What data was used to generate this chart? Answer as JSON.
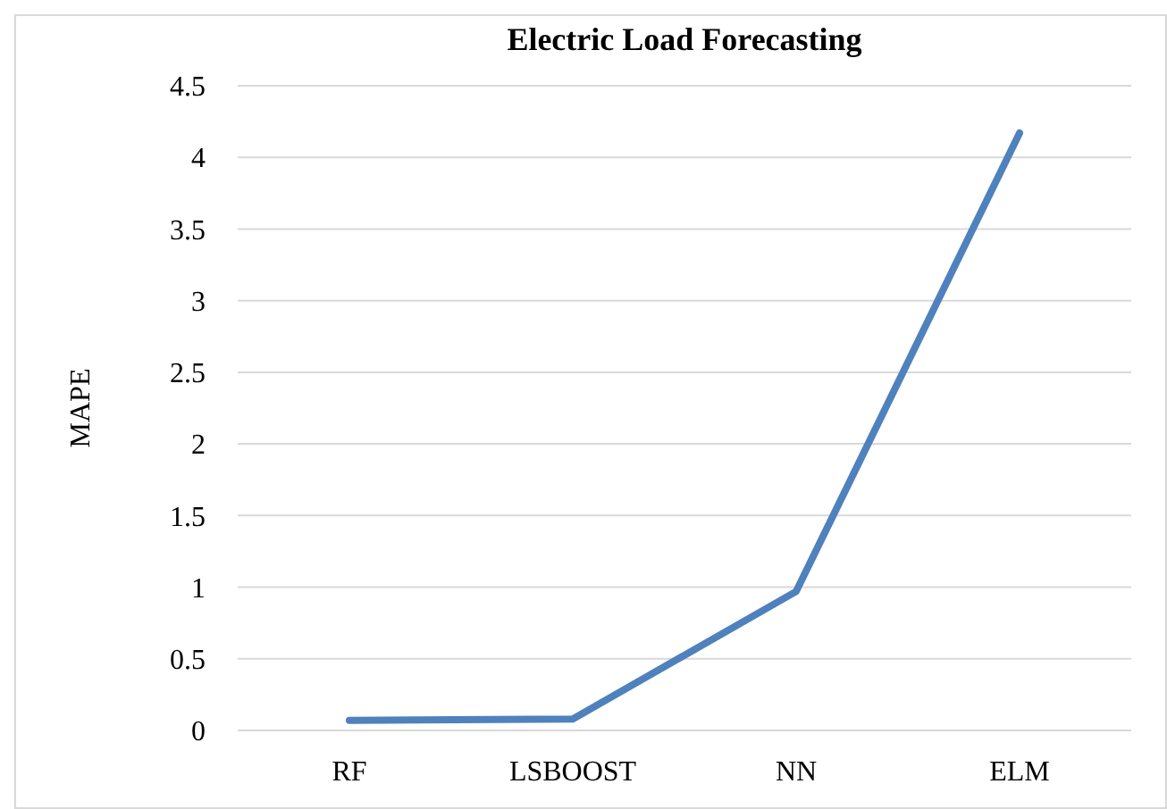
{
  "chart_data": {
    "type": "line",
    "title": "Electric Load Forecasting",
    "ylabel": "MAPE",
    "categories": [
      "RF",
      "LSBOOST",
      "NN",
      "ELM"
    ],
    "series": [
      {
        "color": "#4f81bd",
        "values": [
          0.07,
          0.08,
          0.97,
          4.17
        ]
      }
    ],
    "ylim": [
      0,
      4.5
    ],
    "yticks": [
      0,
      0.5,
      1,
      1.5,
      2,
      2.5,
      3,
      3.5,
      4,
      4.5
    ],
    "grid": "y",
    "marker": "none",
    "line_style": "solid"
  }
}
